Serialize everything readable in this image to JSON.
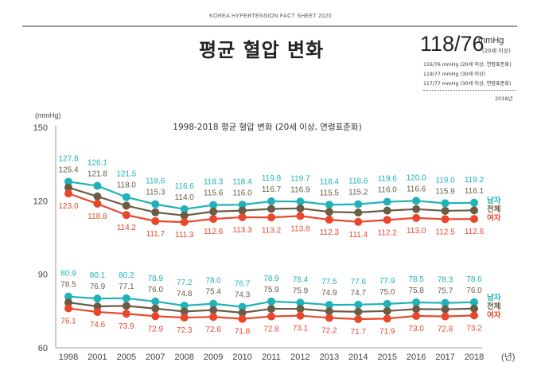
{
  "header": {
    "text": "KOREA HYPERTENSION FACT SHEET 2020"
  },
  "page_title": "평균 혈압 변화",
  "summary": {
    "main_value": "118/76",
    "main_unit": "mmHg",
    "main_sub": "(20세 이상)",
    "notes": [
      "116/76 mmHg (20세 이상, 연령표준화)",
      "119/77 mmHg (30세 이상)",
      "117/77 mmHg (30세 이상, 연령표준화)"
    ],
    "year": "2018년"
  },
  "colors": {
    "male": "#1fb3b8",
    "total": "#6b5c45",
    "female": "#e8472b",
    "axis": "#bbbbbb"
  },
  "chart_data": {
    "type": "line",
    "title": "1998-2018 평균 혈압 변화 (20세 이상, 연령표준화)",
    "ylabel": "(mmHg)",
    "xlabel": "(년)",
    "ylim": [
      60,
      150
    ],
    "yticks": [
      60,
      90,
      120,
      150
    ],
    "grid": false,
    "legend_position": "right",
    "categories": [
      "1998",
      "2001",
      "2005",
      "2007",
      "2008",
      "2009",
      "2010",
      "2011",
      "2012",
      "2013",
      "2014",
      "2015",
      "2016",
      "2017",
      "2018"
    ],
    "series": [
      {
        "name": "남자",
        "group": "systolic",
        "color_key": "male",
        "label_pos": "above1",
        "values": [
          127.8,
          126.1,
          121.5,
          118.6,
          116.6,
          118.3,
          118.4,
          119.8,
          119.7,
          118.4,
          118.6,
          119.6,
          120.0,
          119.0,
          119.2
        ]
      },
      {
        "name": "전체",
        "group": "systolic",
        "color_key": "total",
        "label_pos": "above2",
        "values": [
          125.4,
          121.8,
          118.0,
          115.3,
          114.0,
          115.6,
          116.0,
          116.7,
          116.9,
          115.5,
          115.2,
          116.0,
          116.6,
          115.9,
          116.1
        ]
      },
      {
        "name": "여자",
        "group": "systolic",
        "color_key": "female",
        "label_pos": "below",
        "values": [
          123.0,
          118.8,
          114.2,
          111.7,
          111.3,
          112.6,
          113.3,
          113.2,
          113.8,
          112.3,
          111.4,
          112.2,
          113.0,
          112.5,
          112.6
        ]
      },
      {
        "name": "남자",
        "group": "diastolic",
        "color_key": "male",
        "label_pos": "above1",
        "values": [
          80.9,
          80.1,
          80.2,
          78.9,
          77.2,
          78.0,
          76.7,
          78.9,
          78.4,
          77.5,
          77.6,
          77.9,
          78.5,
          78.3,
          78.6
        ]
      },
      {
        "name": "전체",
        "group": "diastolic",
        "color_key": "total",
        "label_pos": "above2",
        "values": [
          78.5,
          76.9,
          77.1,
          76.0,
          74.8,
          75.4,
          74.3,
          75.9,
          75.9,
          74.9,
          74.7,
          75.0,
          75.8,
          75.7,
          76.0
        ]
      },
      {
        "name": "여자",
        "group": "diastolic",
        "color_key": "female",
        "label_pos": "below",
        "values": [
          76.1,
          74.6,
          73.9,
          72.9,
          72.3,
          72.6,
          71.8,
          72.8,
          73.1,
          72.2,
          71.7,
          71.9,
          73.0,
          72.8,
          73.2
        ]
      }
    ],
    "legend": [
      {
        "label": "남자",
        "color_key": "male"
      },
      {
        "label": "전체",
        "color_key": "total"
      },
      {
        "label": "여자",
        "color_key": "female"
      }
    ]
  }
}
